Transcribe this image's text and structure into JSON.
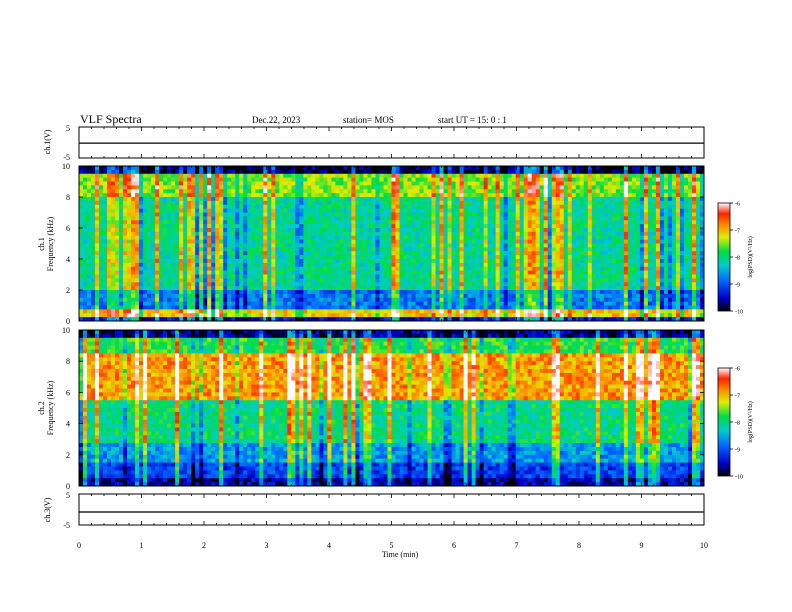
{
  "header": {
    "title": "VLF Spectra",
    "date": "Dec.22, 2023",
    "station": "station= MOS",
    "start": "start  UT =   15: 0  : 1"
  },
  "chart_data": [
    {
      "type": "line",
      "name": "ch1_voltage",
      "ylabel": "ch.1(V)",
      "ylim": [
        -5,
        5
      ],
      "yticks": [
        "5",
        "-5"
      ],
      "x": [
        0,
        10
      ],
      "y": [
        -0.2,
        -0.2
      ],
      "line_color": "#000000"
    },
    {
      "type": "heatmap",
      "name": "ch1_spectrogram",
      "ylabel": "ch.1\nFrequency (kHz)",
      "ylim": [
        0,
        10
      ],
      "yticks": [
        "0",
        "2",
        "4",
        "6",
        "8",
        "10"
      ],
      "xlim": [
        0,
        10
      ],
      "colorbar": {
        "label": "log(PSD)(V²/Hz)",
        "range": [
          -10,
          -6
        ],
        "ticks": [
          "-6",
          "-7",
          "-8",
          "-9",
          "-10"
        ]
      }
    },
    {
      "type": "heatmap",
      "name": "ch2_spectrogram",
      "ylabel": "ch.2\nFrequency (kHz)",
      "ylim": [
        0,
        10
      ],
      "yticks": [
        "0",
        "2",
        "4",
        "6",
        "8",
        "10"
      ],
      "xlim": [
        0,
        10
      ],
      "colorbar": {
        "label": "log(PSD)(V²/Hz)",
        "range": [
          -10,
          -6
        ],
        "ticks": [
          "-6",
          "-7",
          "-8",
          "-9",
          "-10"
        ]
      }
    },
    {
      "type": "line",
      "name": "ch3_voltage",
      "ylabel": "ch.3(V)",
      "ylim": [
        -5,
        5
      ],
      "yticks": [
        "5",
        "-5"
      ],
      "x": [
        0,
        10
      ],
      "y": [
        -0.8,
        -0.8
      ],
      "line_color": "#000000"
    }
  ],
  "xaxis": {
    "label": "Time  (min)",
    "ticks": [
      "0",
      "1",
      "2",
      "3",
      "4",
      "5",
      "6",
      "7",
      "8",
      "9",
      "10"
    ],
    "xlim": [
      0,
      10
    ]
  },
  "colors": {
    "colormap": [
      "#000000",
      "#0000cc",
      "#0066ff",
      "#00cccc",
      "#00dd44",
      "#ddee00",
      "#ff8800",
      "#ff2200",
      "#ffffff"
    ]
  }
}
